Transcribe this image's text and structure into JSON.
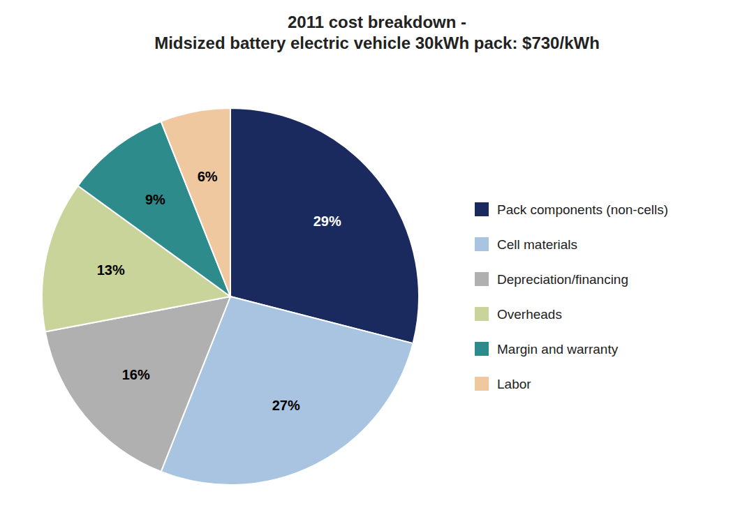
{
  "chart_data": {
    "type": "pie",
    "title": "2011 cost breakdown -\nMidsized battery electric vehicle 30kWh pack: $730/kWh",
    "categories": [
      "Pack components (non-cells)",
      "Cell materials",
      "Depreciation/financing",
      "Overheads",
      "Margin and warranty",
      "Labor"
    ],
    "values": [
      29,
      27,
      16,
      13,
      9,
      6
    ],
    "value_labels": [
      "29%",
      "27%",
      "16%",
      "13%",
      "9%",
      "6%"
    ],
    "colors": [
      "#1a2a5e",
      "#a8c4e0",
      "#b0b0b0",
      "#c8d49a",
      "#2e8b8b",
      "#f0c8a0"
    ],
    "data_labels": true,
    "legend": "right"
  }
}
